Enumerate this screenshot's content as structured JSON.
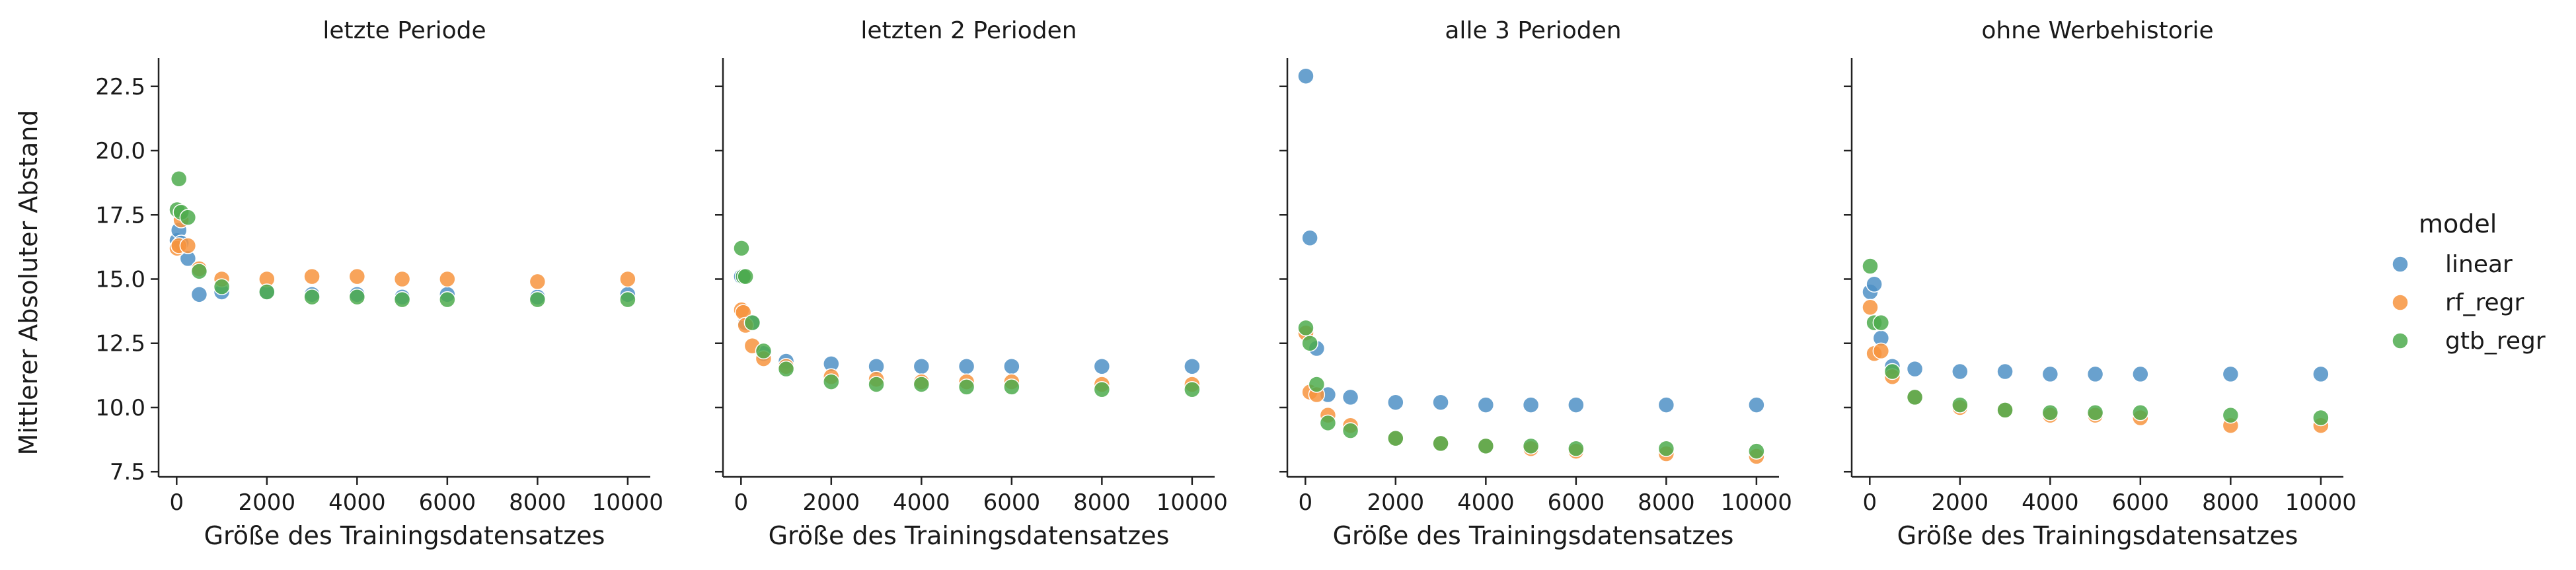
{
  "figure": {
    "ylabel": "Mittlerer Absoluter Abstand",
    "legend_title": "model"
  },
  "chart_data": [
    {
      "type": "scatter",
      "title": "letzte Periode",
      "xlabel": "Größe des Trainingsdatensatzes",
      "ylabel": "Mittlerer Absoluter Abstand",
      "xlim": [
        -400,
        10500
      ],
      "ylim": [
        7.3,
        23.6
      ],
      "xticks": [
        0,
        2000,
        4000,
        6000,
        8000,
        10000
      ],
      "yticks": [
        7.5,
        10.0,
        12.5,
        15.0,
        17.5,
        20.0,
        22.5
      ],
      "series": [
        {
          "name": "linear",
          "x": [
            10,
            50,
            100,
            250,
            500,
            1000,
            2000,
            3000,
            4000,
            5000,
            6000,
            8000,
            10000
          ],
          "y": [
            16.5,
            16.9,
            16.4,
            15.8,
            14.4,
            14.5,
            14.5,
            14.4,
            14.4,
            14.3,
            14.4,
            14.3,
            14.4
          ]
        },
        {
          "name": "rf_regr",
          "x": [
            10,
            50,
            100,
            250,
            500,
            1000,
            2000,
            3000,
            4000,
            5000,
            6000,
            8000,
            10000
          ],
          "y": [
            16.2,
            16.3,
            17.3,
            16.3,
            15.4,
            15.0,
            15.0,
            15.1,
            15.1,
            15.0,
            15.0,
            14.9,
            15.0
          ]
        },
        {
          "name": "gtb_regr",
          "x": [
            10,
            50,
            100,
            250,
            500,
            1000,
            2000,
            3000,
            4000,
            5000,
            6000,
            8000,
            10000
          ],
          "y": [
            17.7,
            18.9,
            17.6,
            17.4,
            15.3,
            14.7,
            14.5,
            14.3,
            14.3,
            14.2,
            14.2,
            14.2,
            14.2
          ]
        }
      ],
      "colors": {
        "linear": "#4f90c5",
        "rf_regr": "#f7943e",
        "gtb_regr": "#4dac4d"
      }
    },
    {
      "type": "scatter",
      "title": "letzten 2 Perioden",
      "xlabel": "Größe des Trainingsdatensatzes",
      "xlim": [
        -400,
        10500
      ],
      "ylim": [
        7.3,
        23.6
      ],
      "xticks": [
        0,
        2000,
        4000,
        6000,
        8000,
        10000
      ],
      "series": [
        {
          "name": "linear",
          "x": [
            10,
            50,
            100,
            250,
            500,
            1000,
            2000,
            3000,
            4000,
            5000,
            6000,
            8000,
            10000
          ],
          "y": [
            15.1,
            15.1,
            13.3,
            13.3,
            12.1,
            11.8,
            11.7,
            11.6,
            11.6,
            11.6,
            11.6,
            11.6,
            11.6
          ]
        },
        {
          "name": "rf_regr",
          "x": [
            10,
            50,
            100,
            250,
            500,
            1000,
            2000,
            3000,
            4000,
            5000,
            6000,
            8000,
            10000
          ],
          "y": [
            13.8,
            13.7,
            13.2,
            12.4,
            11.9,
            11.6,
            11.2,
            11.1,
            11.0,
            11.0,
            11.0,
            10.9,
            10.9
          ]
        },
        {
          "name": "gtb_regr",
          "x": [
            10,
            50,
            100,
            250,
            500,
            1000,
            2000,
            3000,
            4000,
            5000,
            6000,
            8000,
            10000
          ],
          "y": [
            16.2,
            15.1,
            15.1,
            13.3,
            12.2,
            11.5,
            11.0,
            10.9,
            10.9,
            10.8,
            10.8,
            10.7,
            10.7
          ]
        }
      ],
      "colors": {
        "linear": "#4f90c5",
        "rf_regr": "#f7943e",
        "gtb_regr": "#4dac4d"
      }
    },
    {
      "type": "scatter",
      "title": "alle 3 Perioden",
      "xlabel": "Größe des Trainingsdatensatzes",
      "xlim": [
        -400,
        10500
      ],
      "ylim": [
        7.3,
        23.6
      ],
      "xticks": [
        0,
        2000,
        4000,
        6000,
        8000,
        10000
      ],
      "series": [
        {
          "name": "linear",
          "x": [
            10,
            100,
            250,
            500,
            1000,
            2000,
            3000,
            4000,
            5000,
            6000,
            8000,
            10000
          ],
          "y": [
            22.9,
            16.6,
            12.3,
            10.5,
            10.4,
            10.2,
            10.2,
            10.1,
            10.1,
            10.1,
            10.1,
            10.1
          ]
        },
        {
          "name": "rf_regr",
          "x": [
            10,
            100,
            250,
            500,
            1000,
            2000,
            3000,
            4000,
            5000,
            6000,
            8000,
            10000
          ],
          "y": [
            12.9,
            10.6,
            10.5,
            9.7,
            9.3,
            8.8,
            8.6,
            8.5,
            8.4,
            8.3,
            8.2,
            8.1
          ]
        },
        {
          "name": "gtb_regr",
          "x": [
            10,
            100,
            250,
            500,
            1000,
            2000,
            3000,
            4000,
            5000,
            6000,
            8000,
            10000
          ],
          "y": [
            13.1,
            12.5,
            10.9,
            9.4,
            9.1,
            8.8,
            8.6,
            8.5,
            8.5,
            8.4,
            8.4,
            8.3
          ]
        }
      ],
      "colors": {
        "linear": "#4f90c5",
        "rf_regr": "#f7943e",
        "gtb_regr": "#4dac4d"
      }
    },
    {
      "type": "scatter",
      "title": "ohne Werbehistorie",
      "xlabel": "Größe des Trainingsdatensatzes",
      "xlim": [
        -400,
        10500
      ],
      "ylim": [
        7.3,
        23.6
      ],
      "xticks": [
        0,
        2000,
        4000,
        6000,
        8000,
        10000
      ],
      "series": [
        {
          "name": "linear",
          "x": [
            10,
            100,
            250,
            500,
            1000,
            2000,
            3000,
            4000,
            5000,
            6000,
            8000,
            10000
          ],
          "y": [
            14.5,
            14.8,
            12.7,
            11.6,
            11.5,
            11.4,
            11.4,
            11.3,
            11.3,
            11.3,
            11.3,
            11.3
          ]
        },
        {
          "name": "rf_regr",
          "x": [
            10,
            100,
            250,
            500,
            1000,
            2000,
            3000,
            4000,
            5000,
            6000,
            8000,
            10000
          ],
          "y": [
            13.9,
            12.1,
            12.2,
            11.2,
            10.4,
            10.0,
            9.9,
            9.7,
            9.7,
            9.6,
            9.3,
            9.3
          ]
        },
        {
          "name": "gtb_regr",
          "x": [
            10,
            100,
            250,
            500,
            1000,
            2000,
            3000,
            4000,
            5000,
            6000,
            8000,
            10000
          ],
          "y": [
            15.5,
            13.3,
            13.3,
            11.4,
            10.4,
            10.1,
            9.9,
            9.8,
            9.8,
            9.8,
            9.7,
            9.6
          ]
        }
      ],
      "colors": {
        "linear": "#4f90c5",
        "rf_regr": "#f7943e",
        "gtb_regr": "#4dac4d"
      }
    }
  ],
  "legend": {
    "title": "model",
    "entries": [
      {
        "label": "linear",
        "color": "#4f90c5"
      },
      {
        "label": "rf_regr",
        "color": "#f7943e"
      },
      {
        "label": "gtb_regr",
        "color": "#4dac4d"
      }
    ]
  }
}
